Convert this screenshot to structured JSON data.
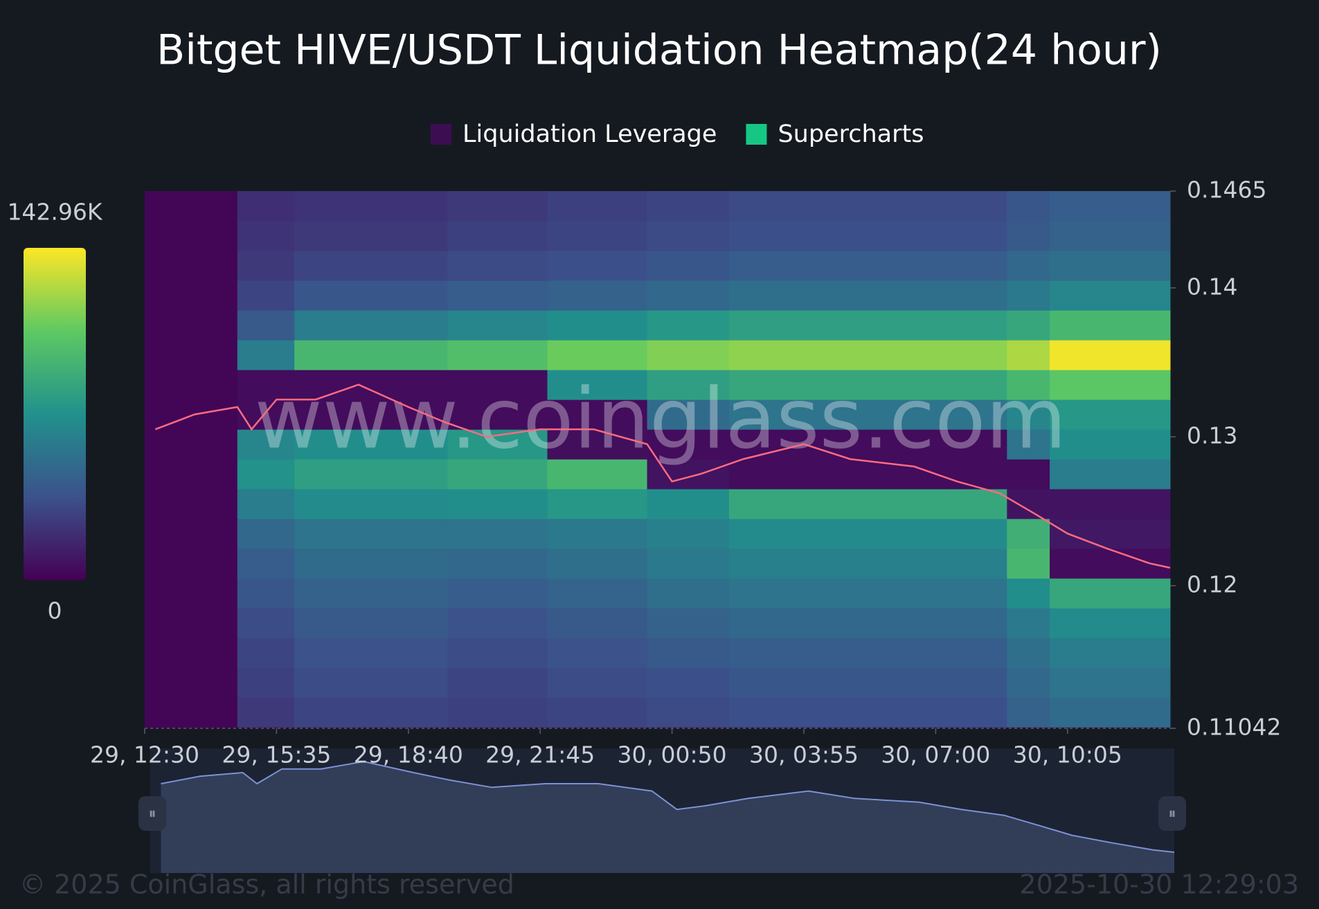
{
  "chart_data": {
    "type": "heatmap",
    "title": "Bitget HIVE/USDT Liquidation Heatmap(24 hour)",
    "legend": [
      {
        "name": "Liquidation Leverage",
        "color": "#3d0d52"
      },
      {
        "name": "Supercharts",
        "color": "#16c784"
      }
    ],
    "watermark": "www.coinglass.com",
    "copyright": "© 2025 CoinGlass, all rights reserved",
    "timestamp": "2025-10-30 12:29:03",
    "xlim": [
      "2025-10-29T12:30",
      "2025-10-30T12:29"
    ],
    "xticks": [
      {
        "value": "2025-10-29T12:30",
        "label": "29, 12:30"
      },
      {
        "value": "2025-10-29T15:35",
        "label": "29, 15:35"
      },
      {
        "value": "2025-10-29T18:40",
        "label": "29, 18:40"
      },
      {
        "value": "2025-10-29T21:45",
        "label": "29, 21:45"
      },
      {
        "value": "2025-10-30T00:50",
        "label": "30, 00:50"
      },
      {
        "value": "2025-10-30T03:55",
        "label": "30, 03:55"
      },
      {
        "value": "2025-10-30T07:00",
        "label": "30, 07:00"
      },
      {
        "value": "2025-10-30T10:05",
        "label": "30, 10:05"
      }
    ],
    "ylim": [
      0.11042,
      0.1465
    ],
    "yticks": [
      0.1465,
      0.14,
      0.13,
      0.12,
      0.11042
    ],
    "colorscale": [
      "#440154",
      "#3b528b",
      "#21918c",
      "#5ec962",
      "#fde725"
    ],
    "zlim": [
      0,
      142960
    ],
    "zticks": [
      {
        "value": 142960,
        "label": "142.96K"
      },
      0
    ],
    "xbins": [
      "2025-10-29T12:30",
      "2025-10-29T14:40",
      "2025-10-29T16:00",
      "2025-10-29T19:35",
      "2025-10-29T21:55",
      "2025-10-30T00:15",
      "2025-10-30T02:10",
      "2025-10-30T08:40",
      "2025-10-30T09:40",
      "2025-10-30T12:29"
    ],
    "ybins": [
      0.1105,
      0.1125,
      0.1145,
      0.1165,
      0.1185,
      0.1205,
      0.1225,
      0.1245,
      0.1265,
      0.1285,
      0.1305,
      0.1325,
      0.1345,
      0.1365,
      0.1385,
      0.1405,
      0.1425,
      0.1445,
      0.1465
    ],
    "z": [
      [
        2000,
        25000,
        30000,
        28000,
        30000,
        32000,
        35000,
        45000,
        50000
      ],
      [
        2000,
        28000,
        33000,
        30000,
        33000,
        35000,
        38000,
        48000,
        55000
      ],
      [
        2000,
        30000,
        36000,
        33000,
        36000,
        40000,
        42000,
        52000,
        60000
      ],
      [
        2000,
        33000,
        40000,
        36000,
        40000,
        45000,
        48000,
        58000,
        68000
      ],
      [
        2000,
        38000,
        45000,
        42000,
        46000,
        52000,
        55000,
        70000,
        85000
      ],
      [
        2000,
        42000,
        50000,
        48000,
        52000,
        58000,
        62000,
        95000,
        5000
      ],
      [
        2000,
        48000,
        55000,
        55000,
        58000,
        62000,
        68000,
        90000,
        10000
      ],
      [
        2000,
        60000,
        68000,
        70000,
        75000,
        70000,
        85000,
        8000,
        8000
      ],
      [
        2000,
        72000,
        80000,
        85000,
        95000,
        8000,
        5000,
        5000,
        60000
      ],
      [
        2000,
        65000,
        70000,
        75000,
        6000,
        5000,
        5000,
        55000,
        70000
      ],
      [
        2000,
        5000,
        5000,
        5000,
        5000,
        50000,
        55000,
        65000,
        75000
      ],
      [
        2000,
        5000,
        5000,
        5000,
        70000,
        80000,
        85000,
        95000,
        105000
      ],
      [
        2000,
        60000,
        95000,
        100000,
        110000,
        115000,
        118000,
        125000,
        140000
      ],
      [
        2000,
        40000,
        60000,
        65000,
        70000,
        75000,
        80000,
        85000,
        95000
      ],
      [
        2000,
        30000,
        38000,
        42000,
        45000,
        48000,
        52000,
        58000,
        65000
      ],
      [
        2000,
        25000,
        30000,
        32000,
        35000,
        38000,
        42000,
        48000,
        52000
      ],
      [
        2000,
        22000,
        25000,
        28000,
        30000,
        32000,
        35000,
        40000,
        45000
      ],
      [
        2000,
        20000,
        22000,
        25000,
        28000,
        30000,
        32000,
        38000,
        42000
      ]
    ],
    "price": {
      "color": "#ff6b81",
      "x": [
        "2025-10-29T12:45",
        "2025-10-29T13:40",
        "2025-10-29T14:40",
        "2025-10-29T15:00",
        "2025-10-29T15:35",
        "2025-10-29T16:30",
        "2025-10-29T17:30",
        "2025-10-29T18:40",
        "2025-10-29T19:30",
        "2025-10-29T20:30",
        "2025-10-29T21:45",
        "2025-10-29T23:00",
        "2025-10-30T00:15",
        "2025-10-30T00:50",
        "2025-10-30T01:30",
        "2025-10-30T02:30",
        "2025-10-30T03:55",
        "2025-10-30T05:00",
        "2025-10-30T06:30",
        "2025-10-30T07:30",
        "2025-10-30T08:30",
        "2025-10-30T09:20",
        "2025-10-30T10:05",
        "2025-10-30T11:00",
        "2025-10-30T12:00",
        "2025-10-30T12:29"
      ],
      "values": [
        0.1305,
        0.1315,
        0.132,
        0.1305,
        0.1325,
        0.1325,
        0.1335,
        0.132,
        0.131,
        0.13,
        0.1305,
        0.1305,
        0.1295,
        0.127,
        0.1275,
        0.1285,
        0.1295,
        0.1285,
        0.128,
        0.127,
        0.1262,
        0.1248,
        0.1235,
        0.1225,
        0.1215,
        0.1212
      ]
    }
  }
}
